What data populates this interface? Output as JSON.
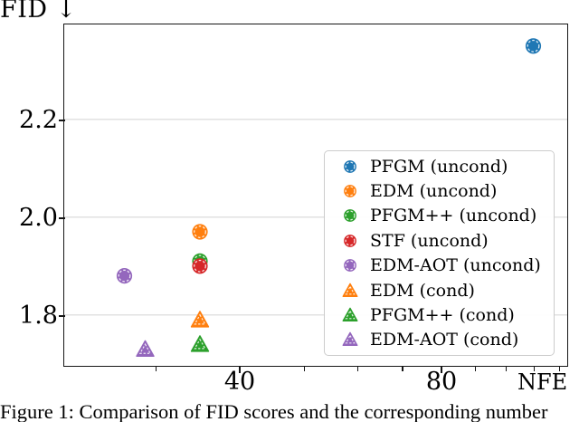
{
  "figure": {
    "y_axis_title": "FID ↓",
    "x_axis_label": "NFE",
    "caption": "Figure 1: Comparison of FID scores and the corresponding number"
  },
  "chart_data": {
    "type": "scatter",
    "title": "",
    "xlabel": "NFE",
    "ylabel": "FID",
    "x_axis": {
      "scale": "log",
      "range": [
        21.96,
        123.6
      ],
      "major_ticks": [
        40,
        80
      ],
      "major_tick_labels": [
        "40",
        "80"
      ],
      "minor_ticks": [
        30,
        50,
        60,
        70,
        90,
        100,
        110,
        120
      ]
    },
    "y_axis": {
      "scale": "linear",
      "range": [
        1.696,
        2.394
      ],
      "ticks": [
        2.2,
        2.0,
        1.8
      ],
      "tick_labels": [
        "2.2",
        "2.0",
        "1.8"
      ],
      "grid": "horizontal",
      "grid_color": "#d9d9d9"
    },
    "legend_position": "lower-right-inside",
    "series": [
      {
        "name": "PFGM (uncond)",
        "marker": "circle",
        "color": "#1f77b4",
        "points": [
          {
            "nfe": 110,
            "fid": 2.35
          }
        ]
      },
      {
        "name": "EDM (uncond)",
        "marker": "circle",
        "color": "#ff7f0e",
        "points": [
          {
            "nfe": 35,
            "fid": 1.97
          }
        ]
      },
      {
        "name": "PFGM++ (uncond)",
        "marker": "circle",
        "color": "#2ca02c",
        "points": [
          {
            "nfe": 35,
            "fid": 1.91
          }
        ]
      },
      {
        "name": "STF (uncond)",
        "marker": "circle",
        "color": "#d62728",
        "points": [
          {
            "nfe": 35,
            "fid": 1.9
          }
        ]
      },
      {
        "name": "EDM-AOT (uncond)",
        "marker": "circle",
        "color": "#9467bd",
        "points": [
          {
            "nfe": 27,
            "fid": 1.88
          }
        ]
      },
      {
        "name": "EDM (cond)",
        "marker": "triangle",
        "color": "#ff7f0e",
        "points": [
          {
            "nfe": 35,
            "fid": 1.79
          }
        ]
      },
      {
        "name": "PFGM++ (cond)",
        "marker": "triangle",
        "color": "#2ca02c",
        "points": [
          {
            "nfe": 35,
            "fid": 1.74
          }
        ]
      },
      {
        "name": "EDM-AOT (cond)",
        "marker": "triangle",
        "color": "#9467bd",
        "points": [
          {
            "nfe": 29,
            "fid": 1.73
          }
        ]
      }
    ]
  }
}
